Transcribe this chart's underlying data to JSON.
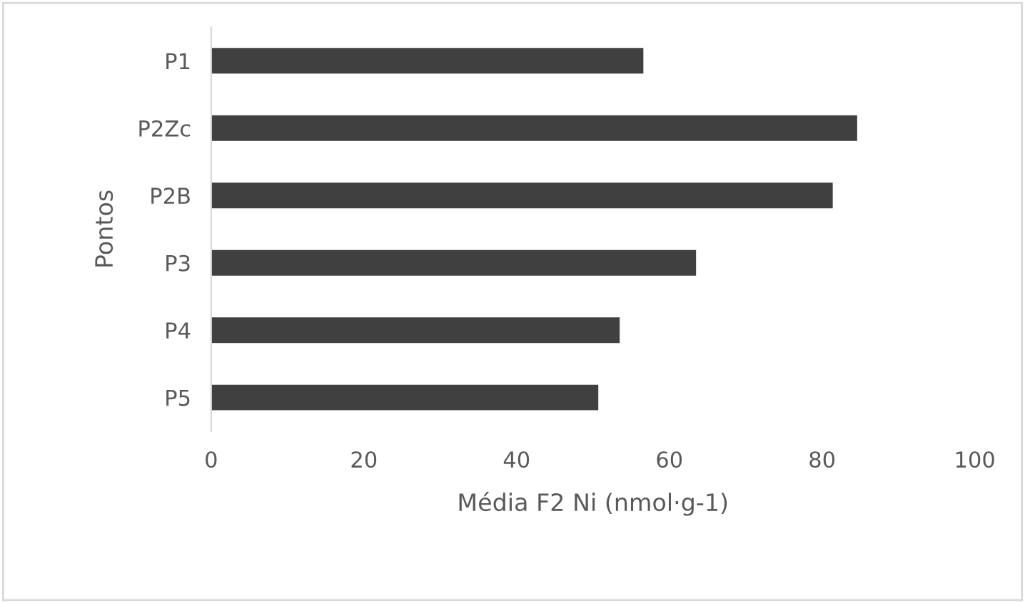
{
  "chart_data": {
    "type": "bar",
    "orientation": "horizontal",
    "xlabel": "Média F2 Ni (nmol·g-1)",
    "ylabel": "Pontos",
    "categories": [
      "P1",
      "P2Zc",
      "P2B",
      "P3",
      "P4",
      "P5"
    ],
    "values": [
      56.6,
      84.6,
      81.4,
      63.5,
      53.5,
      50.7
    ],
    "color": "#404040",
    "xlim": [
      0,
      100
    ],
    "xticks": [
      0,
      20,
      40,
      60,
      80,
      100
    ],
    "grid": false,
    "legend": false
  }
}
